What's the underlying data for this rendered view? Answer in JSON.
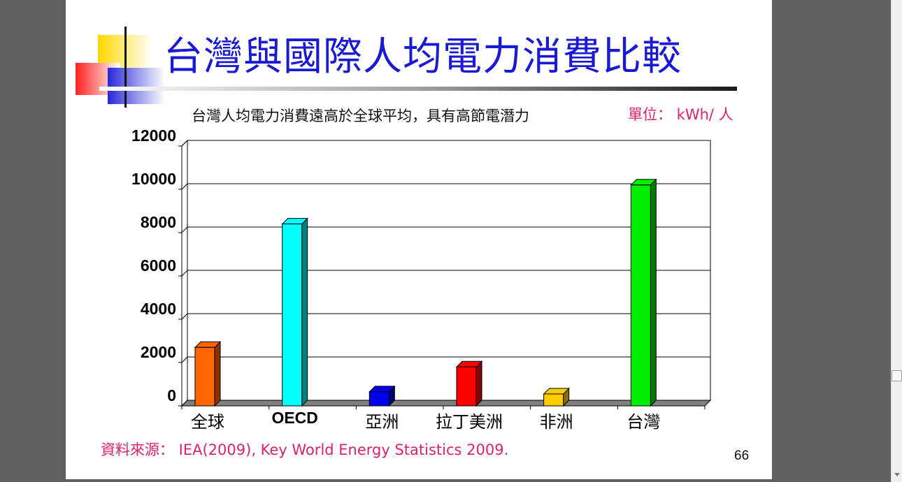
{
  "slide": {
    "title": "台灣與國際人均電力消費比較",
    "subtitle": "台灣人均電力消費遠高於全球平均，具有高節電潛力",
    "unit": "單位： kWh/ 人",
    "source": "資料來源： IEA(2009), Key World Energy Statistics 2009.",
    "page_number": "66"
  },
  "chart_data": {
    "type": "bar",
    "title": "",
    "xlabel": "",
    "ylabel": "",
    "categories": [
      "全球",
      "OECD",
      "亞洲",
      "拉丁美洲",
      "非洲",
      "台灣"
    ],
    "values": [
      2700,
      8400,
      650,
      1800,
      550,
      10200
    ],
    "ylim": [
      0,
      12000
    ],
    "yticks": [
      0,
      2000,
      4000,
      6000,
      8000,
      10000,
      12000
    ],
    "grid": true,
    "legend": "none",
    "colors": [
      "#ff6600",
      "#00ffff",
      "#0000ee",
      "#ff0000",
      "#ffcc00",
      "#00ee00"
    ],
    "side_colors": [
      "#8a3300",
      "#008080",
      "#00007a",
      "#880000",
      "#8a6d00",
      "#007a00"
    ]
  }
}
